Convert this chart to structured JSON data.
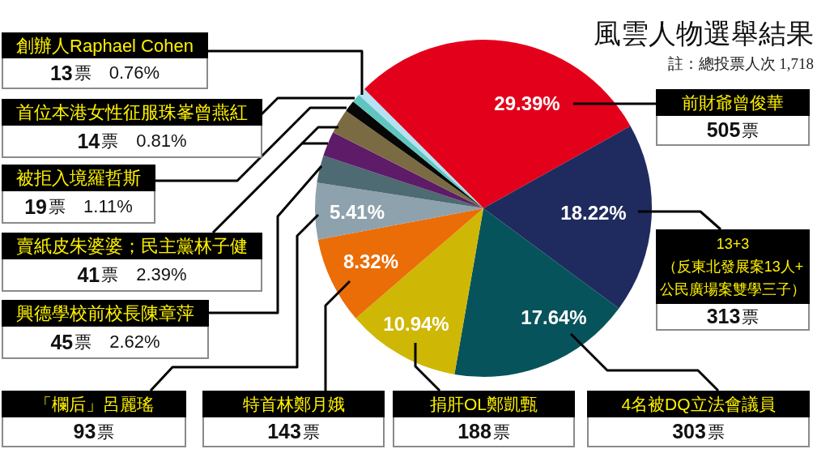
{
  "chart_data": {
    "type": "pie",
    "title": "風雲人物選舉結果",
    "subtitle": "註：總投票人次 1,718",
    "categories": [
      "前財爺曾俊華",
      "13+3\n（反東北發展案13人+\n公民廣場案雙學三子）",
      "4名被DQ立法會議員",
      "捐肝OL鄭凱甄",
      "特首林鄭月娥",
      "「欄后」呂麗瑤",
      "興德學校前校長陳章萍",
      "賣紙皮朱婆婆；民主黨林子健",
      null,
      "被拒入境羅哲斯",
      "首位本港女性征服珠峯曾燕紅",
      "創辦人Raphael Cohen"
    ],
    "values": [
      505,
      313,
      303,
      188,
      143,
      93,
      45,
      41,
      41,
      19,
      14,
      13
    ],
    "colors": [
      "#e3001b",
      "#1f2b5e",
      "#07535b",
      "#cfb705",
      "#ea6d07",
      "#8ea2ad",
      "#4e6a72",
      "#5e1b67",
      "#7a6b43",
      "#070707",
      "#5fc6bf",
      "#b5e1f3"
    ],
    "value_labels": [
      "505票",
      "313票",
      "303票",
      "188票",
      "143票",
      "93票",
      "45票",
      "41票",
      null,
      "19票",
      "14票",
      "13票"
    ],
    "annotations": [
      {
        "text": "29.39%",
        "x": "前財爺曾俊華"
      },
      {
        "text": "18.22%",
        "x": "13+3\n（反東北發展案13人+\n公民廣場案雙學三子）"
      },
      {
        "text": "17.64%",
        "x": "4名被DQ立法會議員"
      },
      {
        "text": "10.94%",
        "x": "捐肝OL鄭凱甄"
      },
      {
        "text": "8.32%",
        "x": "特首林鄭月娥"
      },
      {
        "text": "5.41%",
        "x": "「欄后」呂麗瑤"
      },
      {
        "text": "2.62%",
        "x": "興德學校前校長陳章萍"
      },
      {
        "text": "2.39%",
        "x": "賣紙皮朱婆婆；民主黨林子健"
      },
      {
        "text": "1.11%",
        "x": "被拒入境羅哲斯"
      },
      {
        "text": "0.81%",
        "x": "首位本港女性征服珠峯曾燕紅"
      },
      {
        "text": "0.76%",
        "x": "創辦人Raphael Cohen"
      }
    ]
  }
}
